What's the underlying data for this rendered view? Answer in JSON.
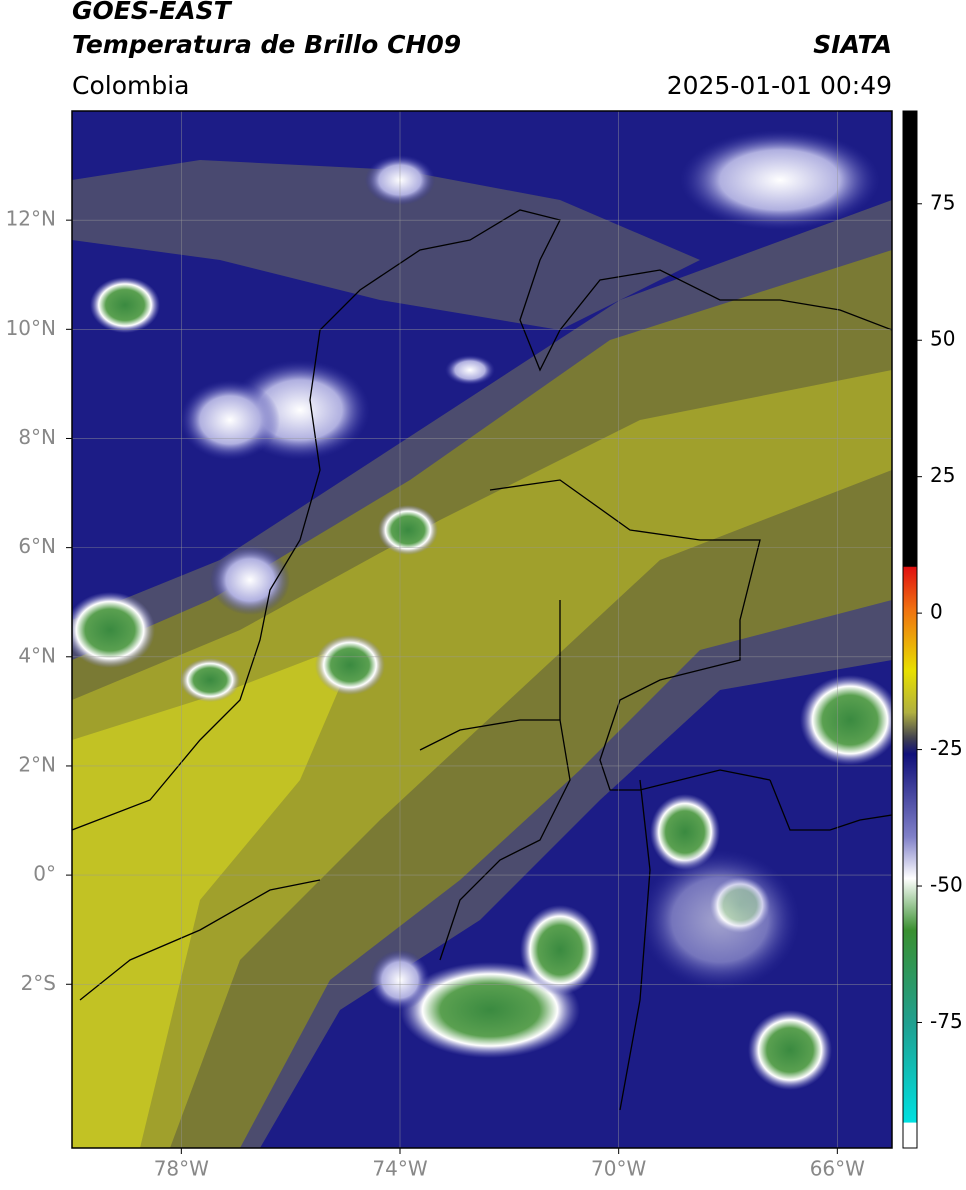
{
  "header": {
    "satellite": "GOES-EAST",
    "product": "Temperatura de Brillo CH09",
    "agency": "SIATA",
    "region": "Colombia",
    "datetime": "2025-01-01 00:49"
  },
  "map": {
    "xlim": [
      -80,
      -65
    ],
    "ylim": [
      -5,
      14
    ],
    "xticks": [
      {
        "value": -78,
        "label": "78°W"
      },
      {
        "value": -74,
        "label": "74°W"
      },
      {
        "value": -70,
        "label": "70°W"
      },
      {
        "value": -66,
        "label": "66°W"
      }
    ],
    "yticks": [
      {
        "value": 12,
        "label": "12°N"
      },
      {
        "value": 10,
        "label": "10°N"
      },
      {
        "value": 8,
        "label": "8°N"
      },
      {
        "value": 6,
        "label": "6°N"
      },
      {
        "value": 4,
        "label": "4°N"
      },
      {
        "value": 2,
        "label": "2°N"
      },
      {
        "value": 0,
        "label": "0°"
      },
      {
        "value": -2,
        "label": "2°S"
      }
    ],
    "grid": true
  },
  "colorbar": {
    "lim": [
      -98,
      92
    ],
    "ticks": [
      75,
      50,
      25,
      0,
      -25,
      -50,
      -75
    ]
  }
}
